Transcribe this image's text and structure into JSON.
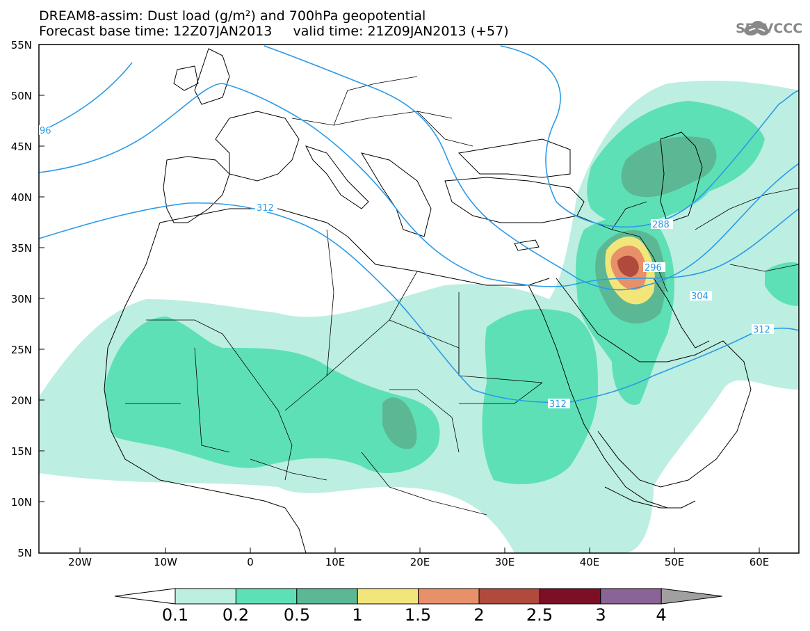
{
  "title": {
    "line1": "DREAM8-assim: Dust load (g/m²) and 700hPa geopotential",
    "line2": "Forecast base time: 12Z07JAN2013     valid time: 21Z09JAN2013 (+57)"
  },
  "logo": {
    "text": "SEEVCCC",
    "icon": "cloud-icon"
  },
  "axes": {
    "lat_labels": [
      "55N",
      "50N",
      "45N",
      "40N",
      "35N",
      "30N",
      "25N",
      "20N",
      "15N",
      "10N",
      "5N"
    ],
    "lon_labels": [
      "20W",
      "10W",
      "0",
      "10E",
      "20E",
      "30E",
      "40E",
      "50E",
      "60E"
    ]
  },
  "contour_labels": [
    "96",
    "312",
    "288",
    "296",
    "304",
    "312",
    "312"
  ],
  "colorbar": {
    "labels": [
      "0.1",
      "0.2",
      "0.5",
      "1",
      "1.5",
      "2",
      "2.5",
      "3",
      "4"
    ],
    "colors": [
      "#bdeee2",
      "#5ee0b6",
      "#5cb894",
      "#f2e67a",
      "#e8906a",
      "#b04a3c",
      "#7c0e26",
      "#8a6496",
      "#a0a0a0"
    ]
  },
  "colors": {
    "dust_lvl1": "#bdeee2",
    "dust_lvl2": "#5ee0b6",
    "dust_lvl3": "#5cb894",
    "dust_lvl4": "#f2e67a",
    "dust_lvl5": "#e8906a",
    "dust_lvl6": "#b04a3c",
    "contour": "#2b9be6",
    "border": "#000000"
  }
}
